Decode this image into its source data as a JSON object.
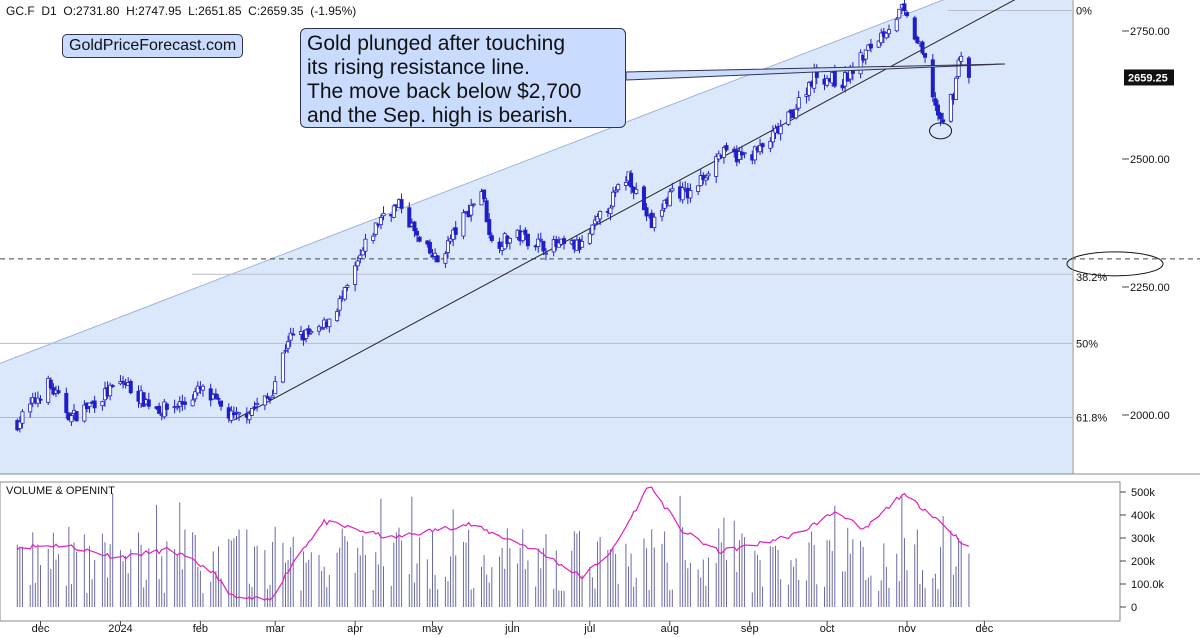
{
  "header": {
    "symbol": "GC.F",
    "timeframe": "D1",
    "ohlc": "O:2731.80  H:2747.95  L:2651.85  C:2659.35  (-1.95%)"
  },
  "brand": "GoldPriceForecast.com",
  "annotation": {
    "lines": [
      "Gold plunged after touching",
      "its rising resistance line.",
      "The move back below $2,700",
      "and the Sep. high is bearish."
    ]
  },
  "last_price_label": "2659.25",
  "colors": {
    "up_candle": "#ffffff",
    "down_candle": "#1f1fc8",
    "channel_fill": "#dbe8fb",
    "volume_bar": "#6a6aa8",
    "open_interest": "#e020c0",
    "annotation_bg": "#c9dcff"
  },
  "chart_data": [
    {
      "type": "candlestick",
      "title": "",
      "xlabel": "",
      "ylabel": "",
      "x_ticks": [
        "dec",
        "2024",
        "feb",
        "mar",
        "apr",
        "may",
        "jun",
        "jul",
        "aug",
        "sep",
        "oct",
        "nov",
        "dec"
      ],
      "y_ticks": [
        "2000.00",
        "2250.00",
        "2500.00",
        "2750.00"
      ],
      "ylim": [
        1880,
        2790
      ],
      "close_path": [
        [
          "2023-11-22",
          1985
        ],
        [
          "2023-12-04",
          2060
        ],
        [
          "2023-12-13",
          1995
        ],
        [
          "2024-01-02",
          2065
        ],
        [
          "2024-01-10",
          2030
        ],
        [
          "2024-01-17",
          2010
        ],
        [
          "2024-01-26",
          2025
        ],
        [
          "2024-02-01",
          2050
        ],
        [
          "2024-02-14",
          1992
        ],
        [
          "2024-02-28",
          2035
        ],
        [
          "2024-03-06",
          2150
        ],
        [
          "2024-03-18",
          2160
        ],
        [
          "2024-03-28",
          2235
        ],
        [
          "2024-04-05",
          2330
        ],
        [
          "2024-04-12",
          2395
        ],
        [
          "2024-04-19",
          2410
        ],
        [
          "2024-04-26",
          2335
        ],
        [
          "2024-05-03",
          2300
        ],
        [
          "2024-05-10",
          2360
        ],
        [
          "2024-05-20",
          2440
        ],
        [
          "2024-05-24",
          2335
        ],
        [
          "2024-06-04",
          2350
        ],
        [
          "2024-06-14",
          2330
        ],
        [
          "2024-06-28",
          2330
        ],
        [
          "2024-07-05",
          2385
        ],
        [
          "2024-07-16",
          2470
        ],
        [
          "2024-07-25",
          2370
        ],
        [
          "2024-08-02",
          2440
        ],
        [
          "2024-08-09",
          2430
        ],
        [
          "2024-08-20",
          2510
        ],
        [
          "2024-08-30",
          2505
        ],
        [
          "2024-09-06",
          2520
        ],
        [
          "2024-09-17",
          2585
        ],
        [
          "2024-09-26",
          2665
        ],
        [
          "2024-10-07",
          2650
        ],
        [
          "2024-10-18",
          2720
        ],
        [
          "2024-10-30",
          2790
        ],
        [
          "2024-11-04",
          2740
        ],
        [
          "2024-11-08",
          2690
        ],
        [
          "2024-11-14",
          2565
        ],
        [
          "2024-11-19",
          2630
        ],
        [
          "2024-11-22",
          2712
        ],
        [
          "2024-11-25",
          2659
        ]
      ],
      "resistance_line": [
        [
          "2023-11-20",
          2110
        ],
        [
          "2024-11-25",
          2830
        ]
      ],
      "support_line": [
        [
          "2024-02-14",
          1990
        ],
        [
          "2024-11-25",
          2760
        ]
      ],
      "fibonacci": [
        {
          "label": "0%",
          "value": 2790
        },
        {
          "label": "38.2%",
          "value": 2275
        },
        {
          "label": "50%",
          "value": 2140
        },
        {
          "label": "61.8%",
          "value": 1995
        }
      ],
      "last_price": 2659.25
    },
    {
      "type": "bar",
      "title": "VOLUME & OPENINT",
      "xlabel": "",
      "ylabel": "",
      "y_ticks": [
        "0",
        "100.0k",
        "200k",
        "300k",
        "400k",
        "500k"
      ],
      "ylim": [
        0,
        530000
      ],
      "series": [
        {
          "name": "",
          "style": "bars",
          "values": []
        },
        {
          "name": "",
          "style": "line",
          "values": [
            [
              "2023-11-22",
              260000
            ],
            [
              "2023-12-10",
              270000
            ],
            [
              "2023-12-31",
              215000
            ],
            [
              "2024-01-20",
              250000
            ],
            [
              "2024-02-05",
              160000
            ],
            [
              "2024-02-14",
              40000
            ],
            [
              "2024-02-28",
              30000
            ],
            [
              "2024-03-10",
              230000
            ],
            [
              "2024-03-20",
              370000
            ],
            [
              "2024-04-15",
              300000
            ],
            [
              "2024-05-15",
              360000
            ],
            [
              "2024-06-10",
              250000
            ],
            [
              "2024-06-28",
              130000
            ],
            [
              "2024-07-10",
              250000
            ],
            [
              "2024-07-24",
              530000
            ],
            [
              "2024-08-06",
              330000
            ],
            [
              "2024-08-20",
              240000
            ],
            [
              "2024-09-03",
              270000
            ],
            [
              "2024-09-20",
              320000
            ],
            [
              "2024-10-05",
              420000
            ],
            [
              "2024-10-15",
              330000
            ],
            [
              "2024-10-30",
              490000
            ],
            [
              "2024-11-10",
              410000
            ],
            [
              "2024-11-25",
              255000
            ]
          ]
        }
      ]
    }
  ]
}
